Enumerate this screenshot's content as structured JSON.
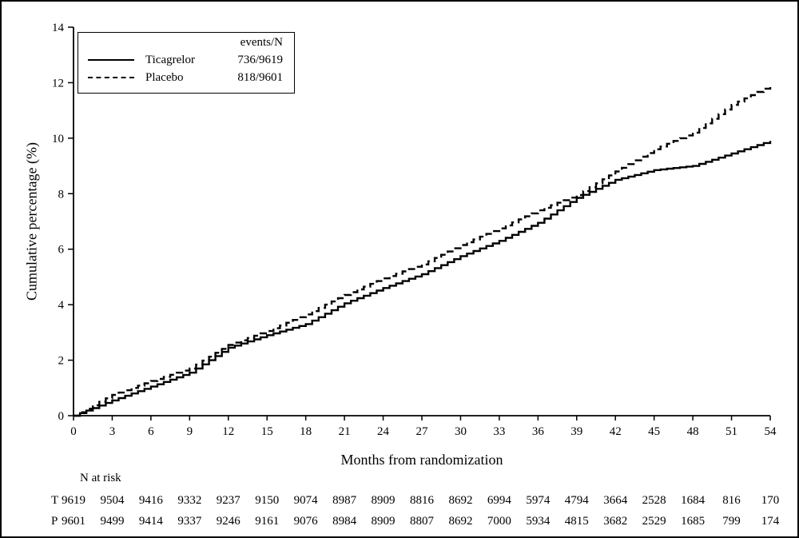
{
  "chart_data": {
    "type": "line",
    "title": "",
    "xlabel": "Months from randomization",
    "ylabel": "Cumulative percentage (%)",
    "xlim": [
      0,
      54
    ],
    "ylim": [
      0,
      14
    ],
    "xticks": [
      0,
      3,
      6,
      9,
      12,
      15,
      18,
      21,
      24,
      27,
      30,
      33,
      36,
      39,
      42,
      45,
      48,
      51,
      54
    ],
    "yticks": [
      0,
      2,
      4,
      6,
      8,
      10,
      12,
      14
    ],
    "grid": false,
    "legend_position": "top-left",
    "legend_header": "events/N",
    "x": [
      0,
      3,
      6,
      9,
      12,
      15,
      18,
      21,
      24,
      27,
      30,
      33,
      36,
      39,
      42,
      45,
      48,
      51,
      54
    ],
    "series": [
      {
        "name": "Ticagrelor",
        "events_n": "736/9619",
        "line_style": "solid",
        "color": "#000000",
        "values": [
          0,
          0.55,
          1.05,
          1.55,
          2.45,
          2.9,
          3.3,
          4.05,
          4.6,
          5.1,
          5.75,
          6.3,
          6.95,
          7.85,
          8.5,
          8.85,
          9.0,
          9.45,
          9.9
        ]
      },
      {
        "name": "Placebo",
        "events_n": "818/9601",
        "line_style": "dashed",
        "color": "#000000",
        "values": [
          0,
          0.75,
          1.25,
          1.7,
          2.55,
          3.05,
          3.65,
          4.35,
          4.95,
          5.45,
          6.15,
          6.75,
          7.4,
          7.95,
          8.8,
          9.6,
          10.2,
          11.2,
          11.9
        ]
      }
    ]
  },
  "risk_table": {
    "title": "N at risk",
    "rows": [
      {
        "label": "T",
        "values": [
          "9619",
          "9504",
          "9416",
          "9332",
          "9237",
          "9150",
          "9074",
          "8987",
          "8909",
          "8816",
          "8692",
          "6994",
          "5974",
          "4794",
          "3664",
          "2528",
          "1684",
          "816",
          "170"
        ]
      },
      {
        "label": "P",
        "values": [
          "9601",
          "9499",
          "9414",
          "9337",
          "9246",
          "9161",
          "9076",
          "8984",
          "8909",
          "8807",
          "8692",
          "7000",
          "5934",
          "4815",
          "3682",
          "2529",
          "1685",
          "799",
          "174"
        ]
      }
    ]
  }
}
